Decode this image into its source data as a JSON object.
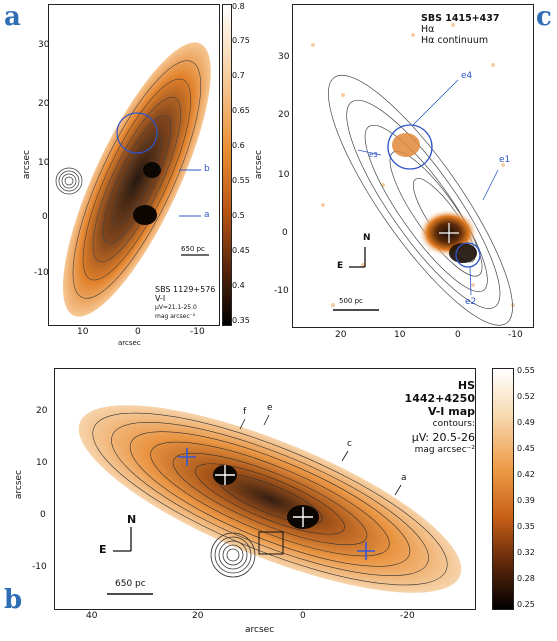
{
  "panels": {
    "a": {
      "letter": "a",
      "object": "SBS 1129+576",
      "map": "V-I",
      "contours": "μV=21.1-25.0",
      "units": "mag arcsec⁻²",
      "scale_bar": "650 pc",
      "ylabel": "arcsec",
      "xlabel": "arcsec",
      "yticks": [
        "30",
        "20",
        "10",
        "0",
        "-10"
      ],
      "xticks": [
        "10",
        "0",
        "-10"
      ],
      "markers": [
        "a",
        "b"
      ],
      "colorbar_label": "arcsec",
      "colorbar_ticks": [
        "0.8",
        "0.75",
        "0.7",
        "0.65",
        "0.6",
        "0.55",
        "0.5",
        "0.45",
        "0.4",
        "0.35"
      ]
    },
    "c": {
      "letter": "c",
      "object": "SBS 1415+437",
      "line1": "Hα",
      "line2": "Hα  continuum",
      "scale_bar": "500 pc",
      "yticks": [
        "30",
        "20",
        "10",
        "0",
        "-10"
      ],
      "xticks": [
        "20",
        "10",
        "0",
        "-10"
      ],
      "markers": [
        "e4",
        "e3",
        "e1",
        "e2"
      ],
      "compass_n": "N",
      "compass_e": "E"
    },
    "b": {
      "letter": "b",
      "object": "HS 1442+4250",
      "map": "V-I map",
      "contours_label": "contours:",
      "contours": "μV: 20.5-26",
      "units": "mag arcsec⁻²",
      "scale_bar": "650 pc",
      "ylabel": "arcsec",
      "xlabel": "arcsec",
      "yticks": [
        "20",
        "10",
        "0",
        "-10"
      ],
      "xticks": [
        "40",
        "20",
        "0",
        "-20"
      ],
      "markers": [
        "f",
        "e",
        "c",
        "a"
      ],
      "compass_n": "N",
      "compass_e": "E",
      "colorbar_ticks": [
        "0.55",
        "0.52",
        "0.49",
        "0.45",
        "0.42",
        "0.39",
        "0.35",
        "0.32",
        "0.28",
        "0.25"
      ]
    }
  },
  "colors": {
    "accent_blue": "#2f6db5",
    "marker_blue": "#2f56c8",
    "map_orange": "#e07a1f",
    "map_dark": "#1a0d05"
  }
}
